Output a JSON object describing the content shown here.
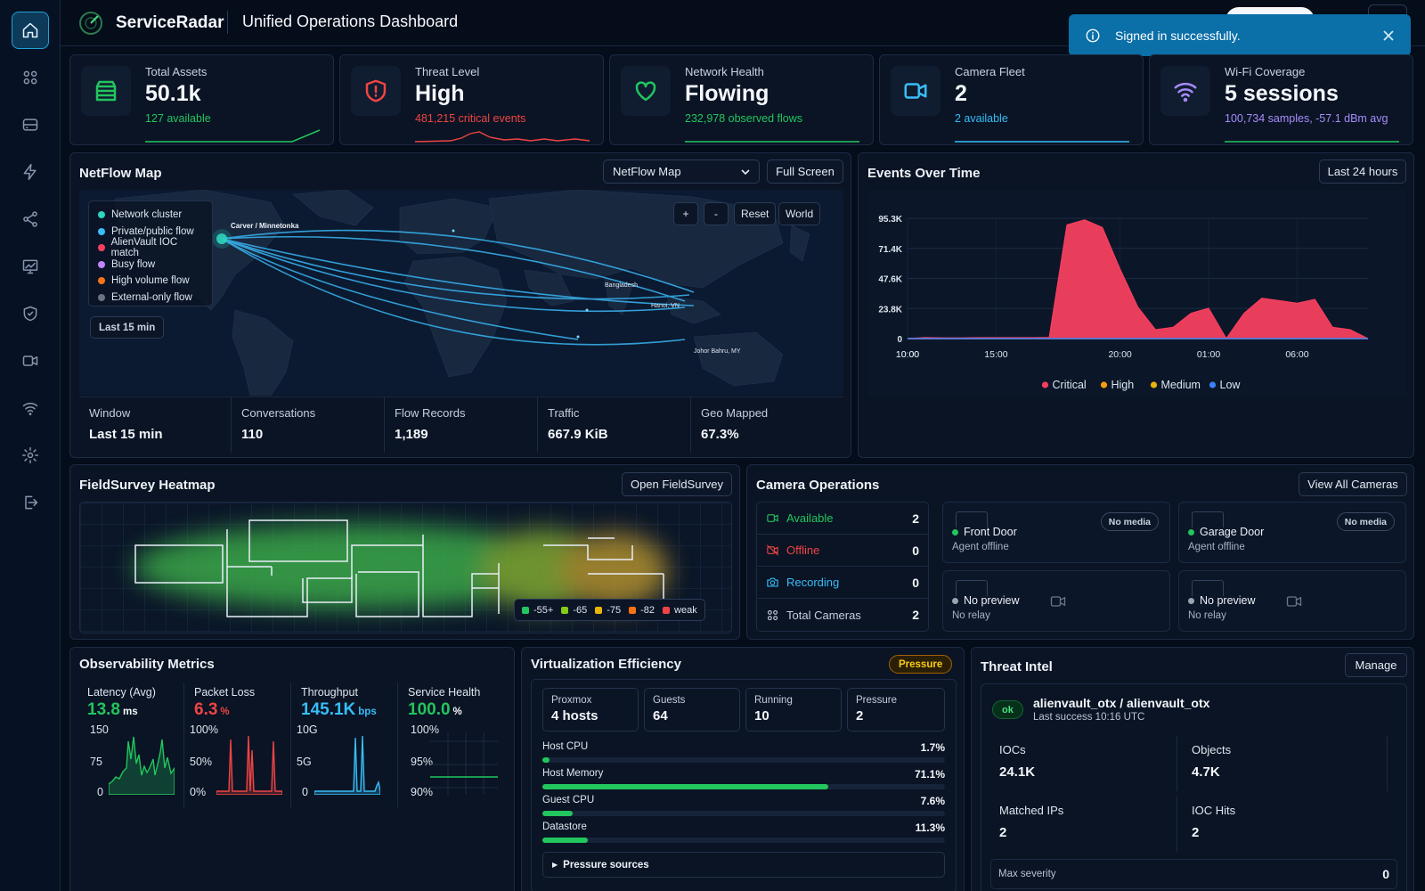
{
  "app": {
    "name": "ServiceRadar",
    "page_title": "Unified Operations Dashboard"
  },
  "toast": {
    "message": "Signed in successfully."
  },
  "nav": [
    "home-icon",
    "grid-icon",
    "server-icon",
    "lightning-icon",
    "share-icon",
    "chart-monitor-icon",
    "shield-check-icon",
    "video-icon",
    "wifi-icon",
    "gear-icon",
    "logout-icon"
  ],
  "kpis": [
    {
      "label": "Total Assets",
      "value": "50.1k",
      "sub": "127 available",
      "color": "#22c55e",
      "icon": "server-icon"
    },
    {
      "label": "Threat Level",
      "value": "High",
      "sub": "481,215 critical events",
      "color": "#ef4444",
      "icon": "shield-alert-icon"
    },
    {
      "label": "Network Health",
      "value": "Flowing",
      "sub": "232,978 observed flows",
      "color": "#22c55e",
      "icon": "heart-icon"
    },
    {
      "label": "Camera Fleet",
      "value": "2",
      "sub": "2 available",
      "color": "#38bdf8",
      "icon": "video-icon"
    },
    {
      "label": "Wi-Fi Coverage",
      "value": "5 sessions",
      "sub": "100,734 samples, -57.1 dBm avg",
      "color": "#a78bfa",
      "icon": "wifi-icon"
    }
  ],
  "netflow": {
    "title": "NetFlow Map",
    "select_value": "NetFlow Map",
    "fullscreen": "Full Screen",
    "map_buttons": [
      "+",
      "-",
      "Reset",
      "World"
    ],
    "legend": [
      {
        "label": "Network cluster",
        "color": "#2dd4bf"
      },
      {
        "label": "Private/public flow",
        "color": "#38bdf8"
      },
      {
        "label": "AlienVault IOC match",
        "color": "#f43f5e"
      },
      {
        "label": "Busy flow",
        "color": "#c084fc"
      },
      {
        "label": "High volume flow",
        "color": "#f97316"
      },
      {
        "label": "External-only flow",
        "color": "#6b7280"
      }
    ],
    "window_chip": "Last 15 min",
    "places": [
      "Carver / Minnetonka",
      "Bangladesh",
      "Hanoi, VN",
      "Johor Bahru, MY"
    ],
    "stats": [
      {
        "label": "Window",
        "value": "Last 15 min"
      },
      {
        "label": "Conversations",
        "value": "110"
      },
      {
        "label": "Flow Records",
        "value": "1,189"
      },
      {
        "label": "Traffic",
        "value": "667.9 KiB"
      },
      {
        "label": "Geo Mapped",
        "value": "67.3%"
      }
    ]
  },
  "events": {
    "title": "Events Over Time",
    "range": "Last 24 hours"
  },
  "chart_data": {
    "type": "area",
    "title": "Events Over Time",
    "x": [
      "10:00",
      "11:00",
      "12:00",
      "13:00",
      "14:00",
      "15:00",
      "16:00",
      "17:00",
      "18:00",
      "18:30",
      "19:00",
      "19:30",
      "20:00",
      "21:00",
      "22:00",
      "23:00",
      "00:00",
      "01:00",
      "02:00",
      "03:00",
      "04:00",
      "05:00",
      "06:00",
      "07:00",
      "08:00",
      "09:00",
      "10:00"
    ],
    "x_ticks": [
      "10:00",
      "15:00",
      "20:00",
      "01:00",
      "06:00",
      "10:00"
    ],
    "y_ticks": [
      "0",
      "23.8K",
      "47.6K",
      "71.4K",
      "95.3K"
    ],
    "ylim": [
      0,
      95300
    ],
    "series": [
      {
        "name": "Critical",
        "color": "#f43f5e",
        "values": [
          0,
          800,
          600,
          600,
          700,
          700,
          700,
          700,
          900,
          90000,
          94000,
          88000,
          55000,
          25000,
          7000,
          9000,
          20000,
          24000,
          0,
          20000,
          32000,
          30000,
          28000,
          31000,
          9000,
          7000,
          0
        ]
      },
      {
        "name": "High",
        "color": "#f59e0b",
        "values": [
          0,
          0,
          0,
          0,
          0,
          0,
          0,
          0,
          0,
          0,
          0,
          0,
          0,
          0,
          0,
          0,
          0,
          0,
          0,
          0,
          0,
          0,
          0,
          0,
          0,
          0,
          0
        ]
      },
      {
        "name": "Medium",
        "color": "#eab308",
        "values": [
          0,
          0,
          0,
          0,
          0,
          0,
          0,
          0,
          0,
          0,
          0,
          0,
          0,
          0,
          0,
          0,
          0,
          0,
          0,
          0,
          0,
          0,
          0,
          0,
          0,
          0,
          0
        ]
      },
      {
        "name": "Low",
        "color": "#3b82f6",
        "values": [
          0,
          0,
          0,
          0,
          0,
          0,
          0,
          0,
          0,
          0,
          0,
          0,
          0,
          0,
          0,
          0,
          0,
          0,
          0,
          0,
          0,
          0,
          0,
          0,
          0,
          0,
          0
        ]
      }
    ],
    "legend_position": "bottom"
  },
  "fieldsurvey": {
    "title": "FieldSurvey Heatmap",
    "open": "Open FieldSurvey",
    "legend": [
      {
        "label": "-55+",
        "color": "#22c55e"
      },
      {
        "label": "-65",
        "color": "#84cc16"
      },
      {
        "label": "-75",
        "color": "#eab308"
      },
      {
        "label": "-82",
        "color": "#f97316"
      },
      {
        "label": "weak",
        "color": "#ef4444"
      }
    ]
  },
  "camera": {
    "title": "Camera Operations",
    "view_all": "View All Cameras",
    "rows": [
      {
        "label": "Available",
        "value": "2",
        "color": "#22c55e"
      },
      {
        "label": "Offline",
        "value": "0",
        "color": "#ef4444"
      },
      {
        "label": "Recording",
        "value": "0",
        "color": "#38bdf8"
      },
      {
        "label": "Total Cameras",
        "value": "2",
        "color": "#c5cedd"
      }
    ],
    "tiles": [
      {
        "name": "Front Door",
        "status": "Agent offline",
        "badge": "No media",
        "dot": "#22c55e"
      },
      {
        "name": "Garage Door",
        "status": "Agent offline",
        "badge": "No media",
        "dot": "#22c55e"
      },
      {
        "name": "No preview",
        "status": "No relay",
        "badge": "",
        "dot": "#9ca3af"
      },
      {
        "name": "No preview",
        "status": "No relay",
        "badge": "",
        "dot": "#9ca3af"
      }
    ]
  },
  "observability": {
    "title": "Observability Metrics",
    "metrics": [
      {
        "label": "Latency (Avg)",
        "value": "13.8",
        "unit": "ms",
        "color": "#22c55e",
        "axis": [
          "150",
          "75",
          "0"
        ]
      },
      {
        "label": "Packet Loss",
        "value": "6.3",
        "unit": "%",
        "color": "#ef4444",
        "axis": [
          "100%",
          "50%",
          "0%"
        ]
      },
      {
        "label": "Throughput",
        "value": "145.1K",
        "unit": "bps",
        "color": "#38bdf8",
        "axis": [
          "10G",
          "5G",
          "0"
        ]
      },
      {
        "label": "Service Health",
        "value": "100.0",
        "unit": "%",
        "color": "#22c55e",
        "axis": [
          "100%",
          "95%",
          "90%"
        ]
      }
    ]
  },
  "virtualization": {
    "title": "Virtualization Efficiency",
    "badge": "Pressure",
    "tiles": [
      {
        "label": "Proxmox",
        "value": "4 hosts"
      },
      {
        "label": "Guests",
        "value": "64"
      },
      {
        "label": "Running",
        "value": "10"
      },
      {
        "label": "Pressure",
        "value": "2"
      }
    ],
    "bars": [
      {
        "label": "Host CPU",
        "pct": "1.7%",
        "value": 1.7
      },
      {
        "label": "Host Memory",
        "pct": "71.1%",
        "value": 71.1
      },
      {
        "label": "Guest CPU",
        "pct": "7.6%",
        "value": 7.6
      },
      {
        "label": "Datastore",
        "pct": "11.3%",
        "value": 11.3
      }
    ],
    "pressure_sources": "Pressure sources"
  },
  "threat": {
    "title": "Threat Intel",
    "manage": "Manage",
    "status": "ok",
    "source": "alienvault_otx / alienvault_otx",
    "last_success": "Last success 10:16 UTC",
    "stats": [
      {
        "label": "IOCs",
        "value": "24.1K"
      },
      {
        "label": "Objects",
        "value": "4.7K"
      },
      {
        "label": "Matched IPs",
        "value": "2"
      },
      {
        "label": "IOC Hits",
        "value": "2"
      }
    ],
    "max_severity_label": "Max severity",
    "max_severity": "0"
  }
}
